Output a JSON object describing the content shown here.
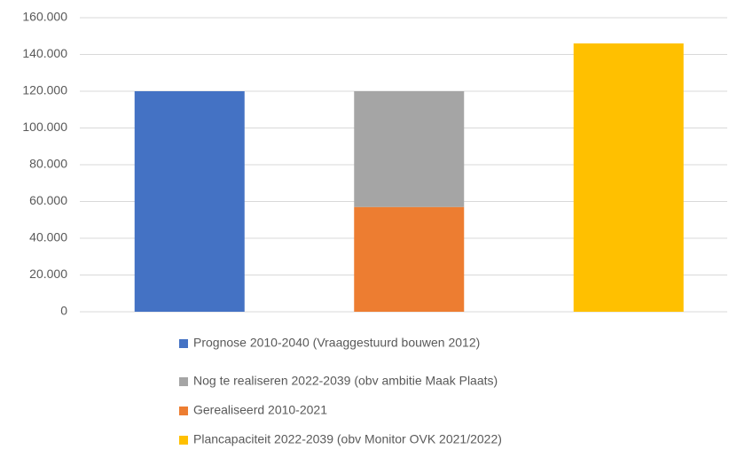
{
  "chart_data": {
    "type": "stacked_bar",
    "categories": [
      null,
      null,
      null
    ],
    "series": [
      {
        "name": "Prognose 2010-2040 (Vraaggestuurd bouwen 2012)",
        "color": "#4472c4",
        "values": [
          120000,
          null,
          null
        ]
      },
      {
        "name": "Nog te realiseren 2022-2039 (obv ambitie Maak Plaats)",
        "color": "#a5a5a5",
        "values": [
          null,
          63000,
          null
        ]
      },
      {
        "name": "Gerealiseerd 2010-2021",
        "color": "#ed7d31",
        "values": [
          null,
          57000,
          null
        ]
      },
      {
        "name": "Plancapaciteit 2022-2039 (obv Monitor OVK 2021/2022)",
        "color": "#ffc000",
        "values": [
          null,
          null,
          146000
        ]
      }
    ],
    "ylim": [
      0,
      160000
    ],
    "yticks": [
      0,
      {
        "value": 20000,
        "label": "20.000"
      },
      {
        "value": 40000,
        "label": "40.000"
      },
      {
        "value": 60000,
        "label": "60.000"
      },
      {
        "value": 80000,
        "label": "80.000"
      },
      {
        "value": 100000,
        "label": "100.000"
      },
      {
        "value": 120000,
        "label": "120.000"
      },
      {
        "value": 140000,
        "label": "140.000"
      },
      {
        "value": 160000,
        "label": "160.000"
      }
    ],
    "grid": true
  }
}
